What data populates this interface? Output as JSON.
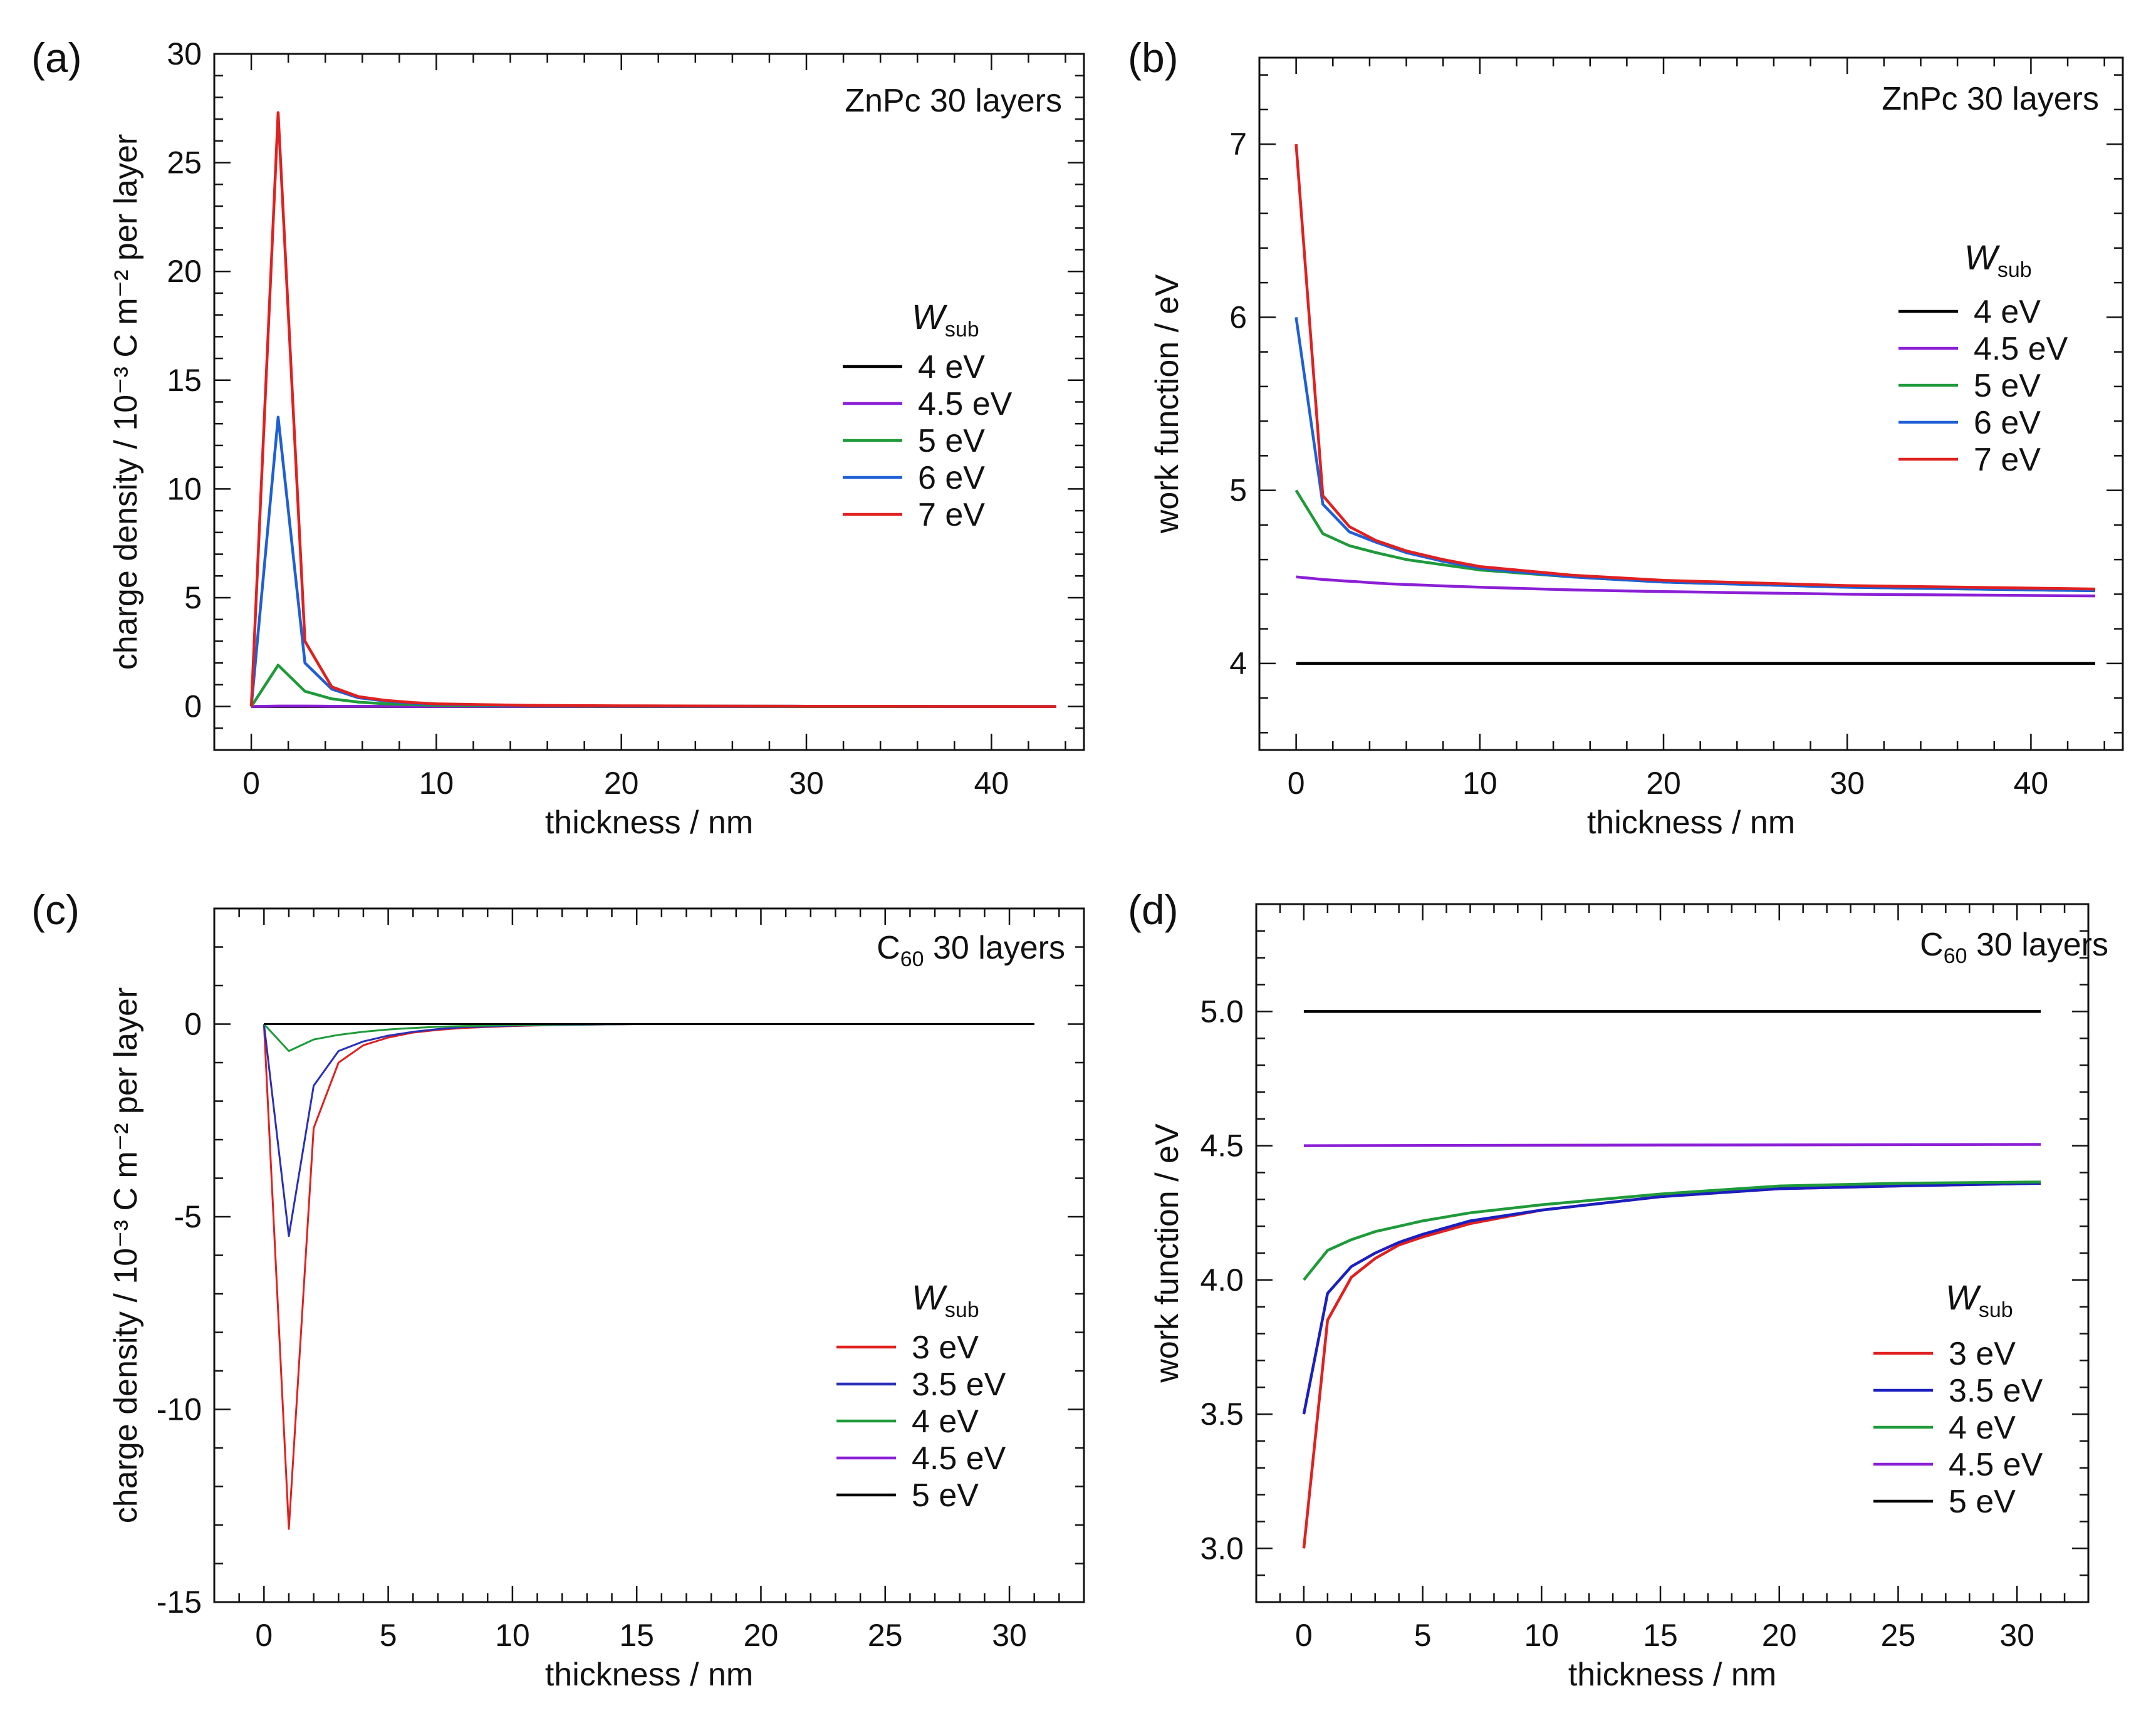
{
  "figure": {
    "panels": [
      "a",
      "b",
      "c",
      "d"
    ]
  },
  "chart_data": [
    {
      "id": "a",
      "type": "line",
      "panel_label": "(a)",
      "annotation": "ZnPc 30 layers",
      "xlabel": "thickness / nm",
      "ylabel": "charge density / 10⁻³ C m⁻² per layer",
      "xlim": [
        -2,
        45
      ],
      "ylim": [
        -2,
        30
      ],
      "xticks": [
        0,
        10,
        20,
        30,
        40
      ],
      "yticks": [
        0,
        5,
        10,
        15,
        20,
        25,
        30
      ],
      "legend_title": "Wsub",
      "legend_title_main": "W",
      "legend_title_sub": "sub",
      "series": [
        {
          "name": "4 eV",
          "color": "#000000",
          "x": [
            0,
            1.45,
            2.9,
            4.35,
            5.8,
            7.25,
            8.7,
            10,
            15,
            20,
            30,
            43.5
          ],
          "y": [
            0,
            0,
            0,
            0,
            0,
            0,
            0,
            0,
            0,
            0,
            0,
            0
          ]
        },
        {
          "name": "4.5 eV",
          "color": "#8b1fd6",
          "x": [
            0,
            1.45,
            2.9,
            4.35,
            5.8,
            7.25,
            8.7,
            10,
            15,
            20,
            30,
            43.5
          ],
          "y": [
            0,
            0.02,
            0.02,
            0.01,
            0.01,
            0.01,
            0,
            0,
            0,
            0,
            0,
            0
          ]
        },
        {
          "name": "5 eV",
          "color": "#1f9a3a",
          "x": [
            0,
            1.45,
            2.9,
            4.35,
            5.8,
            7.25,
            8.7,
            10,
            15,
            20,
            30,
            43.5
          ],
          "y": [
            0,
            1.9,
            0.7,
            0.35,
            0.2,
            0.12,
            0.08,
            0.05,
            0.02,
            0.01,
            0,
            0
          ]
        },
        {
          "name": "6 eV",
          "color": "#1f5fd6",
          "x": [
            0,
            1.45,
            2.9,
            4.35,
            5.8,
            7.25,
            8.7,
            10,
            15,
            20,
            30,
            43.5
          ],
          "y": [
            0,
            13.3,
            2.0,
            0.8,
            0.4,
            0.25,
            0.15,
            0.1,
            0.04,
            0.02,
            0.01,
            0
          ]
        },
        {
          "name": "7 eV",
          "color": "#e02020",
          "x": [
            0,
            1.45,
            2.9,
            4.35,
            5.8,
            7.25,
            8.7,
            10,
            15,
            20,
            30,
            43.5
          ],
          "y": [
            0,
            27.3,
            3.0,
            0.9,
            0.45,
            0.28,
            0.18,
            0.12,
            0.05,
            0.03,
            0.01,
            0
          ]
        }
      ]
    },
    {
      "id": "b",
      "type": "line",
      "panel_label": "(b)",
      "annotation": "ZnPc 30 layers",
      "xlabel": "thickness / nm",
      "ylabel": "work function / eV",
      "xlim": [
        -2,
        45
      ],
      "ylim": [
        3.5,
        7.5
      ],
      "xticks": [
        0,
        10,
        20,
        30,
        40
      ],
      "yticks": [
        4,
        5,
        6,
        7
      ],
      "legend_title": "Wsub",
      "legend_title_main": "W",
      "legend_title_sub": "sub",
      "series": [
        {
          "name": "4 eV",
          "color": "#000000",
          "x": [
            0,
            43.5
          ],
          "y": [
            4.0,
            4.0
          ]
        },
        {
          "name": "4.5 eV",
          "color": "#8b1fd6",
          "x": [
            0,
            1.45,
            2.9,
            5,
            10,
            15,
            20,
            30,
            43.5
          ],
          "y": [
            4.5,
            4.485,
            4.475,
            4.46,
            4.44,
            4.425,
            4.415,
            4.4,
            4.39
          ]
        },
        {
          "name": "5 eV",
          "color": "#1f9a3a",
          "x": [
            0,
            1.45,
            2.9,
            4.35,
            6,
            8,
            10,
            15,
            20,
            30,
            43.5
          ],
          "y": [
            5.0,
            4.75,
            4.68,
            4.64,
            4.6,
            4.57,
            4.54,
            4.5,
            4.47,
            4.44,
            4.42
          ]
        },
        {
          "name": "6 eV",
          "color": "#1f5fd6",
          "x": [
            0,
            1.45,
            2.9,
            4.35,
            6,
            8,
            10,
            15,
            20,
            30,
            43.5
          ],
          "y": [
            6.0,
            4.92,
            4.76,
            4.7,
            4.64,
            4.59,
            4.55,
            4.5,
            4.47,
            4.44,
            4.42
          ]
        },
        {
          "name": "7 eV",
          "color": "#e02020",
          "x": [
            0,
            1.45,
            2.9,
            4.35,
            6,
            8,
            10,
            15,
            20,
            30,
            43.5
          ],
          "y": [
            7.0,
            4.97,
            4.79,
            4.71,
            4.65,
            4.6,
            4.56,
            4.51,
            4.48,
            4.45,
            4.43
          ]
        }
      ]
    },
    {
      "id": "c",
      "type": "line",
      "panel_label": "(c)",
      "annotation": "C60 30 layers",
      "annotation_main": "C",
      "annotation_sub": "60",
      "annotation_rest": " 30 layers",
      "xlabel": "thickness / nm",
      "ylabel": "charge density / 10⁻³ C m⁻² per layer",
      "xlim": [
        -2,
        33
      ],
      "ylim": [
        -15,
        3
      ],
      "xticks": [
        0,
        5,
        10,
        15,
        20,
        25,
        30
      ],
      "yticks": [
        0,
        -5,
        -10,
        -15
      ],
      "legend_title": "Wsub",
      "legend_title_main": "W",
      "legend_title_sub": "sub",
      "series": [
        {
          "name": "3 eV",
          "color": "#e02020",
          "x": [
            0,
            1,
            2,
            3,
            4,
            5,
            6,
            7,
            8,
            10,
            12,
            15,
            31
          ],
          "y": [
            0,
            -13.1,
            -2.7,
            -1.0,
            -0.55,
            -0.35,
            -0.22,
            -0.15,
            -0.1,
            -0.05,
            -0.02,
            0,
            0
          ]
        },
        {
          "name": "3.5 eV",
          "color": "#2a2fb8",
          "x": [
            0,
            1,
            2,
            3,
            4,
            5,
            6,
            7,
            8,
            10,
            12,
            15,
            31
          ],
          "y": [
            0,
            -5.5,
            -1.6,
            -0.7,
            -0.45,
            -0.3,
            -0.2,
            -0.13,
            -0.08,
            -0.04,
            -0.02,
            0,
            0
          ]
        },
        {
          "name": "4 eV",
          "color": "#1f9a3a",
          "x": [
            0,
            1,
            2,
            3,
            4,
            5,
            6,
            7,
            8,
            10,
            12,
            15,
            31
          ],
          "y": [
            0,
            -0.7,
            -0.4,
            -0.28,
            -0.2,
            -0.14,
            -0.1,
            -0.07,
            -0.05,
            -0.03,
            -0.01,
            0,
            0
          ]
        },
        {
          "name": "4.5 eV",
          "color": "#8b1fd6",
          "x": [
            0,
            31
          ],
          "y": [
            0,
            0
          ]
        },
        {
          "name": "5 eV",
          "color": "#000000",
          "x": [
            0,
            31
          ],
          "y": [
            0,
            0
          ]
        }
      ]
    },
    {
      "id": "d",
      "type": "line",
      "panel_label": "(d)",
      "annotation": "C60 30 layers",
      "annotation_main": "C",
      "annotation_sub": "60",
      "annotation_rest": " 30 layers",
      "xlabel": "thickness / nm",
      "ylabel": "work function / eV",
      "xlim": [
        -2,
        33
      ],
      "ylim": [
        2.8,
        5.4
      ],
      "xticks": [
        0,
        5,
        10,
        15,
        20,
        25,
        30
      ],
      "yticks": [
        "3.0",
        "3.5",
        "4.0",
        "4.5",
        "5.0"
      ],
      "legend_title": "Wsub",
      "legend_title_main": "W",
      "legend_title_sub": "sub",
      "series": [
        {
          "name": "3 eV",
          "color": "#e02020",
          "x": [
            0,
            1,
            2,
            3,
            4,
            5,
            7,
            10,
            15,
            20,
            25,
            31
          ],
          "y": [
            3.0,
            3.85,
            4.01,
            4.08,
            4.13,
            4.16,
            4.21,
            4.26,
            4.31,
            4.34,
            4.35,
            4.36
          ]
        },
        {
          "name": "3.5 eV",
          "color": "#1a1fc0",
          "x": [
            0,
            1,
            2,
            3,
            4,
            5,
            7,
            10,
            15,
            20,
            25,
            31
          ],
          "y": [
            3.5,
            3.95,
            4.05,
            4.1,
            4.14,
            4.17,
            4.22,
            4.26,
            4.31,
            4.34,
            4.35,
            4.36
          ]
        },
        {
          "name": "4 eV",
          "color": "#1f9a3a",
          "x": [
            0,
            1,
            2,
            3,
            4,
            5,
            7,
            10,
            15,
            20,
            25,
            31
          ],
          "y": [
            4.0,
            4.11,
            4.15,
            4.18,
            4.2,
            4.22,
            4.25,
            4.28,
            4.32,
            4.35,
            4.36,
            4.365
          ]
        },
        {
          "name": "4.5 eV",
          "color": "#8b1fd6",
          "x": [
            0,
            31
          ],
          "y": [
            4.5,
            4.505
          ]
        },
        {
          "name": "5 eV",
          "color": "#000000",
          "x": [
            0,
            31
          ],
          "y": [
            5.0,
            5.0
          ]
        }
      ]
    }
  ]
}
